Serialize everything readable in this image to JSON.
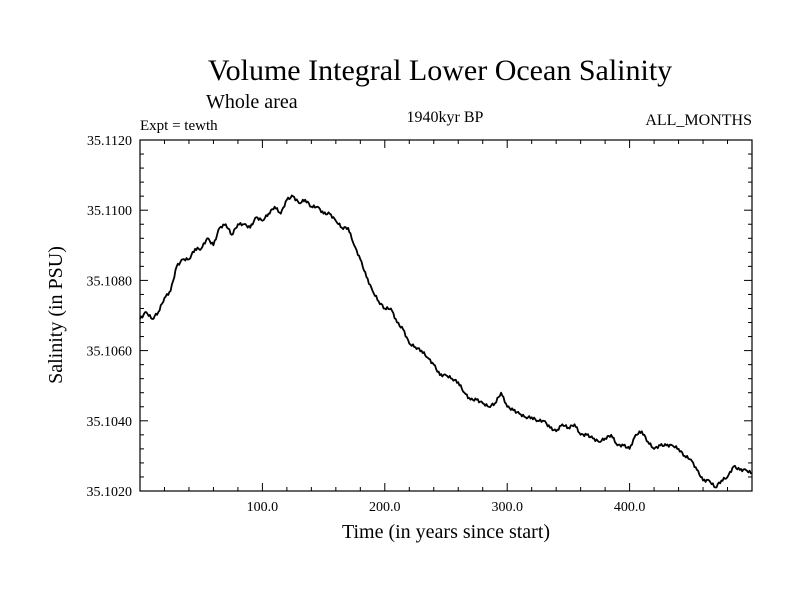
{
  "chart_data": {
    "type": "line",
    "title": "Volume Integral Lower Ocean Salinity",
    "subtitle": "Whole area",
    "experiment_label": "Expt = tewth",
    "period_label": "1940kyr BP",
    "months_label": "ALL_MONTHS",
    "xlabel": "Time (in years since start)",
    "ylabel": "Salinity (in PSU)",
    "xlim": [
      0,
      500
    ],
    "ylim": [
      35.102,
      35.112
    ],
    "x_ticks": [
      100,
      200,
      300,
      400
    ],
    "x_tick_labels": [
      "100.0",
      "200.0",
      "300.0",
      "400.0"
    ],
    "y_ticks": [
      35.102,
      35.104,
      35.106,
      35.108,
      35.11,
      35.112
    ],
    "y_tick_labels": [
      "35.1020",
      "35.1040",
      "35.1060",
      "35.1080",
      "35.1100",
      "35.1120"
    ],
    "series": [
      {
        "name": "Salinity",
        "color": "#000000",
        "x": [
          0,
          5,
          10,
          15,
          20,
          25,
          30,
          35,
          40,
          45,
          50,
          55,
          60,
          65,
          70,
          75,
          80,
          85,
          90,
          95,
          100,
          105,
          110,
          115,
          120,
          125,
          130,
          135,
          140,
          145,
          150,
          155,
          160,
          165,
          170,
          175,
          180,
          185,
          190,
          195,
          200,
          205,
          210,
          215,
          220,
          225,
          230,
          235,
          240,
          245,
          250,
          255,
          260,
          265,
          270,
          275,
          280,
          285,
          290,
          295,
          300,
          305,
          310,
          315,
          320,
          325,
          330,
          335,
          340,
          345,
          350,
          355,
          360,
          365,
          370,
          375,
          380,
          385,
          390,
          395,
          400,
          405,
          410,
          415,
          420,
          425,
          430,
          435,
          440,
          445,
          450,
          455,
          460,
          465,
          470,
          475,
          480,
          485,
          490,
          495,
          500
        ],
        "values": [
          35.1069,
          35.1071,
          35.1069,
          35.1071,
          35.1075,
          35.1077,
          35.1084,
          35.1086,
          35.1086,
          35.1089,
          35.1089,
          35.1092,
          35.109,
          35.1095,
          35.1096,
          35.1093,
          35.1096,
          35.1096,
          35.1095,
          35.1098,
          35.1097,
          35.1099,
          35.1101,
          35.1099,
          35.1103,
          35.1104,
          35.1102,
          35.1103,
          35.1101,
          35.1101,
          35.1099,
          35.1099,
          35.1097,
          35.1095,
          35.1095,
          35.109,
          35.1086,
          35.1081,
          35.1077,
          35.1074,
          35.1072,
          35.1072,
          35.1068,
          35.1066,
          35.1062,
          35.1061,
          35.106,
          35.1058,
          35.1056,
          35.1053,
          35.1053,
          35.1052,
          35.1051,
          35.1048,
          35.1046,
          35.1046,
          35.1045,
          35.1044,
          35.1045,
          35.1048,
          35.1044,
          35.1043,
          35.1042,
          35.1041,
          35.1041,
          35.104,
          35.104,
          35.1038,
          35.1037,
          35.1039,
          35.1038,
          35.1039,
          35.1036,
          35.1036,
          35.1035,
          35.1034,
          35.1035,
          35.1036,
          35.1033,
          35.1033,
          35.1032,
          35.1036,
          35.1037,
          35.1034,
          35.1032,
          35.1033,
          35.1033,
          35.1033,
          35.1032,
          35.103,
          35.1029,
          35.1026,
          35.1023,
          35.1023,
          35.1021,
          35.1023,
          35.1024,
          35.1027,
          35.1026,
          35.1026,
          35.1025
        ]
      }
    ]
  }
}
